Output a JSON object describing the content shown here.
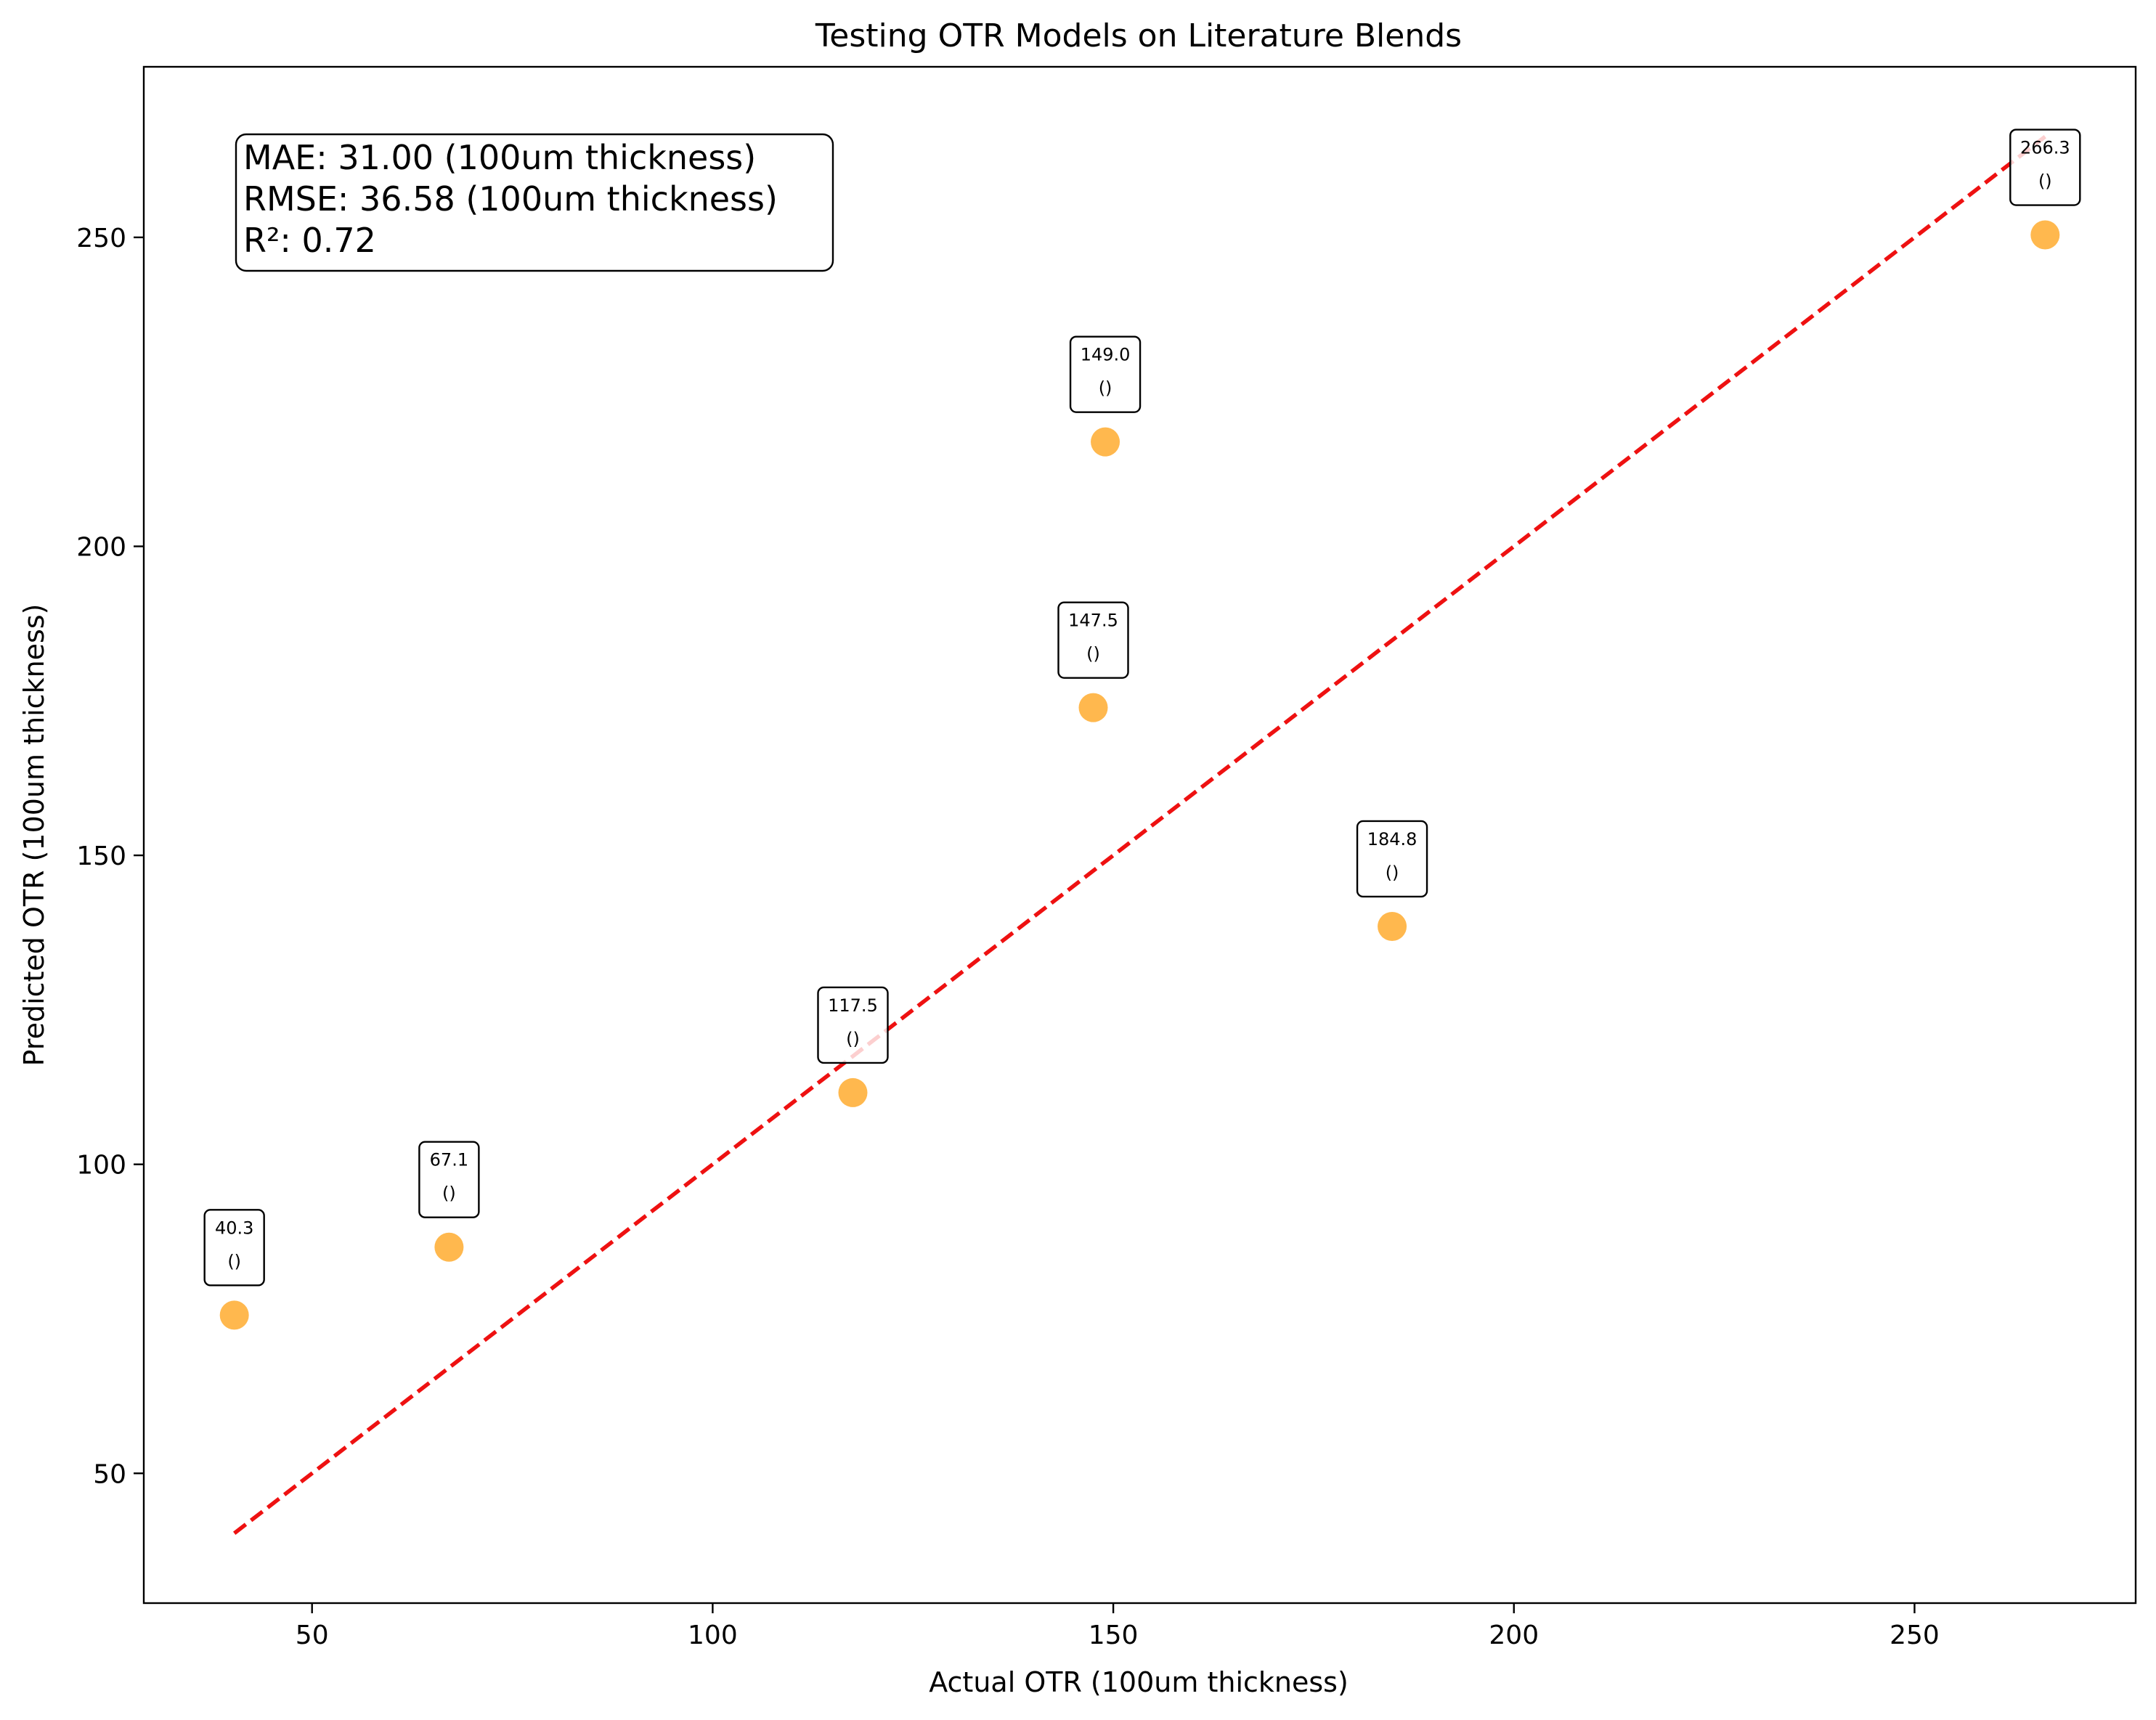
{
  "chart_data": {
    "type": "scatter",
    "title": "Testing OTR Models on Literature Blends",
    "xlabel": "Actual OTR (100um thickness)",
    "ylabel": "Predicted OTR (100um thickness)",
    "xlim": [
      29.0,
      277.6
    ],
    "ylim": [
      29.0,
      277.6
    ],
    "xticks": [
      50,
      100,
      150,
      200,
      250
    ],
    "yticks": [
      50,
      100,
      150,
      200,
      250
    ],
    "grid": false,
    "stats": [
      "MAE: 31.00 (100um thickness)",
      "RMSE: 36.58 (100um thickness)",
      "R²: 0.72"
    ],
    "points": [
      {
        "x": 40.3,
        "y": 75.6,
        "label": "40.3",
        "sublabel": "()"
      },
      {
        "x": 67.1,
        "y": 86.6,
        "label": "67.1",
        "sublabel": "()"
      },
      {
        "x": 117.5,
        "y": 111.6,
        "label": "117.5",
        "sublabel": "()"
      },
      {
        "x": 147.5,
        "y": 173.9,
        "label": "147.5",
        "sublabel": "()"
      },
      {
        "x": 149.0,
        "y": 216.9,
        "label": "149.0",
        "sublabel": "()"
      },
      {
        "x": 184.8,
        "y": 138.5,
        "label": "184.8",
        "sublabel": "()"
      },
      {
        "x": 266.3,
        "y": 250.4,
        "label": "266.3",
        "sublabel": "()"
      }
    ],
    "reference_line": {
      "x": [
        40.3,
        266.3
      ],
      "y": [
        40.3,
        266.3
      ],
      "style": "dashed",
      "color": "#ee1111"
    },
    "marker_color": "#ffa41c"
  }
}
